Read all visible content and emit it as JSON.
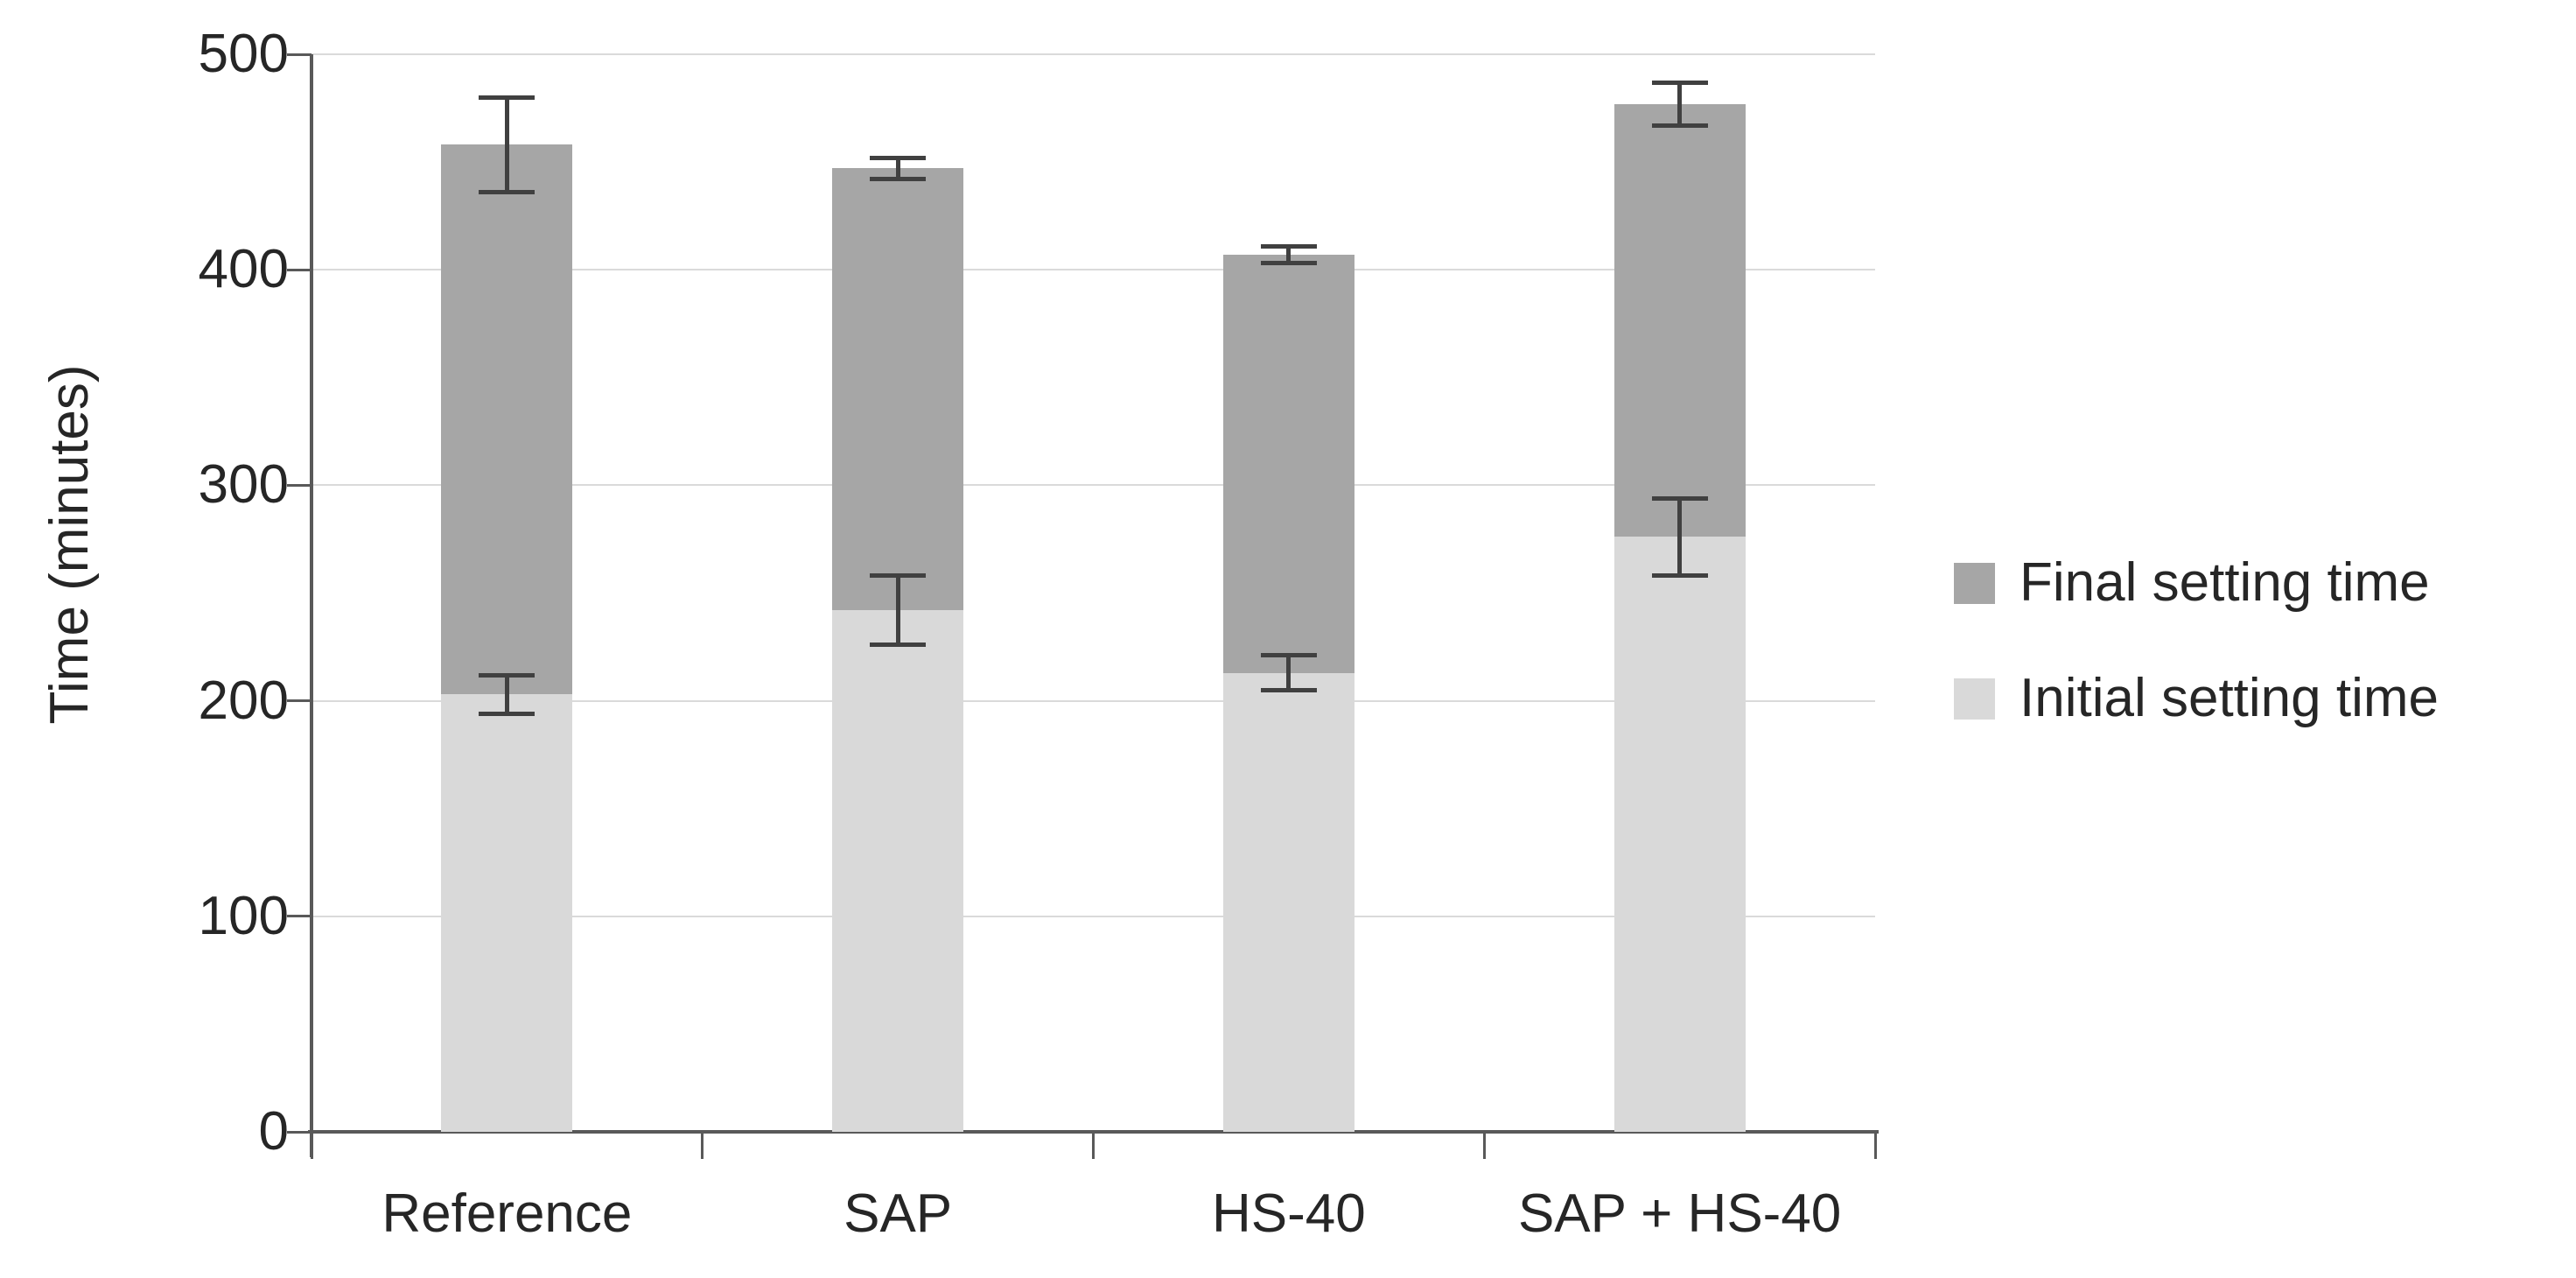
{
  "chart_data": {
    "type": "bar",
    "subtype": "stacked-column-with-error-bars",
    "title": "",
    "xlabel": "",
    "ylabel": "Time (minutes)",
    "ylim": [
      0,
      500
    ],
    "yticks": [
      0,
      100,
      200,
      300,
      400,
      500
    ],
    "grid": "horizontal",
    "categories": [
      "Reference",
      "SAP",
      "HS-40",
      "SAP + HS-40"
    ],
    "series": [
      {
        "name": "Initial setting time",
        "color": "#D9D9D9",
        "values": [
          203,
          242,
          213,
          276
        ],
        "error": [
          10,
          17,
          9,
          19
        ]
      },
      {
        "name": "Final setting time",
        "color": "#A6A6A6",
        "values": [
          255,
          205,
          194,
          201
        ]
      }
    ],
    "stack_totals": [
      458,
      447,
      407,
      477
    ],
    "stack_total_error": [
      23,
      6,
      5,
      11
    ],
    "legend_position": "right",
    "legend": [
      {
        "label": "Final setting time",
        "color": "#A6A6A6"
      },
      {
        "label": "Initial setting time",
        "color": "#D9D9D9"
      }
    ],
    "colors": {
      "background": "#FFFFFF",
      "gridline": "#DADADA",
      "axis": "#595959",
      "error_bar": "#404040",
      "text": "#262626"
    }
  }
}
